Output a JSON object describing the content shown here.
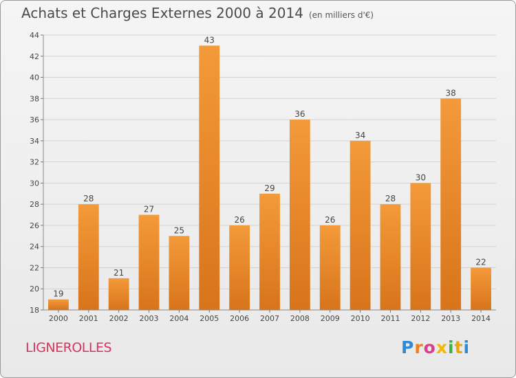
{
  "header": {
    "title": "Achats et Charges Externes 2000 à 2014",
    "subtitle": "(en milliers d'€)"
  },
  "footer": {
    "commune": "LIGNEROLLES",
    "logo_letters": [
      "P",
      "r",
      "o",
      "x",
      "i",
      "t",
      "i"
    ]
  },
  "colors": {
    "bar": "#f39a3a",
    "bar_dark": "#d8741a",
    "commune": "#d7345c",
    "grid": "#d2d2d2",
    "logo": [
      "#2e8ad8",
      "#f07f1b",
      "#e03c8c",
      "#f5b800",
      "#3ab14a",
      "#e8a70c",
      "#2e8ad8"
    ]
  },
  "chart_data": {
    "type": "bar",
    "title": "Achats et Charges Externes 2000 à 2014",
    "subtitle": "(en milliers d'€)",
    "categories": [
      "2000",
      "2001",
      "2002",
      "2003",
      "2004",
      "2005",
      "2006",
      "2007",
      "2008",
      "2009",
      "2010",
      "2011",
      "2012",
      "2013",
      "2014"
    ],
    "values": [
      19,
      28,
      21,
      27,
      25,
      43,
      26,
      29,
      36,
      26,
      34,
      28,
      30,
      38,
      22
    ],
    "ylim": [
      18,
      44
    ],
    "yticks": [
      18,
      20,
      22,
      24,
      26,
      28,
      30,
      32,
      34,
      36,
      38,
      40,
      42,
      44
    ],
    "grid": true,
    "data_labels": true,
    "legend": false
  }
}
